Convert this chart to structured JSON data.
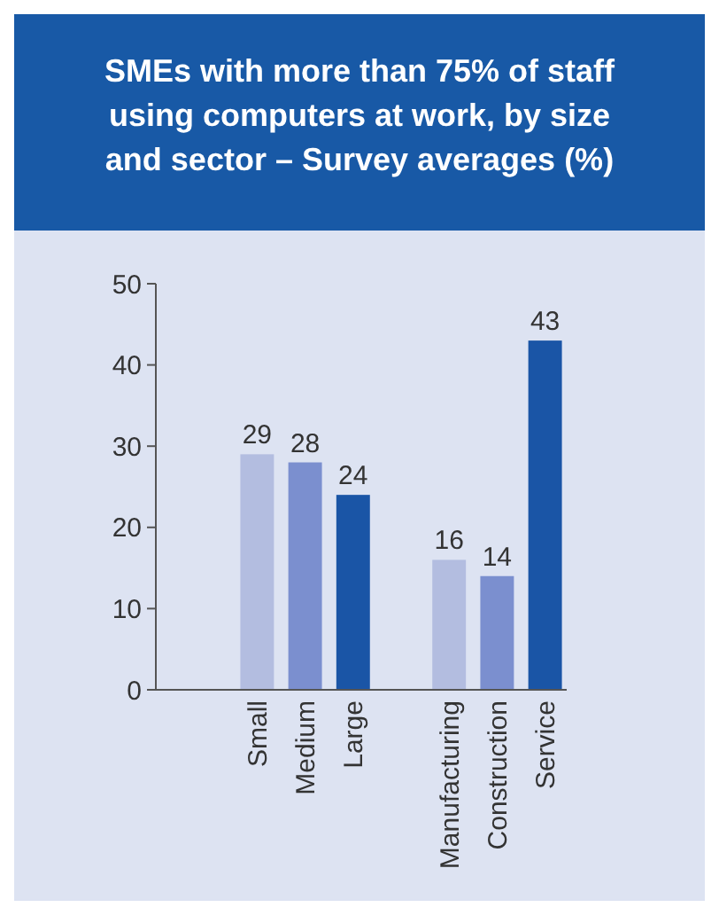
{
  "chart_data": {
    "type": "bar",
    "title": "SMEs with more than 75% of staff using computers at work, by size and sector – Survey averages (%)",
    "categories": [
      "Small",
      "Medium",
      "Large",
      null,
      "Manufacturing",
      "Construction",
      "Service"
    ],
    "values": [
      29,
      28,
      24,
      null,
      16,
      14,
      43
    ],
    "colors": [
      "#b3bde0",
      "#7b8fcf",
      "#1a55a6",
      null,
      "#b3bde0",
      "#7b8fcf",
      "#1a55a6"
    ],
    "ylim": [
      0,
      50
    ],
    "yticks": [
      0,
      10,
      20,
      30,
      40,
      50
    ],
    "grid": false,
    "data_labels": true
  }
}
